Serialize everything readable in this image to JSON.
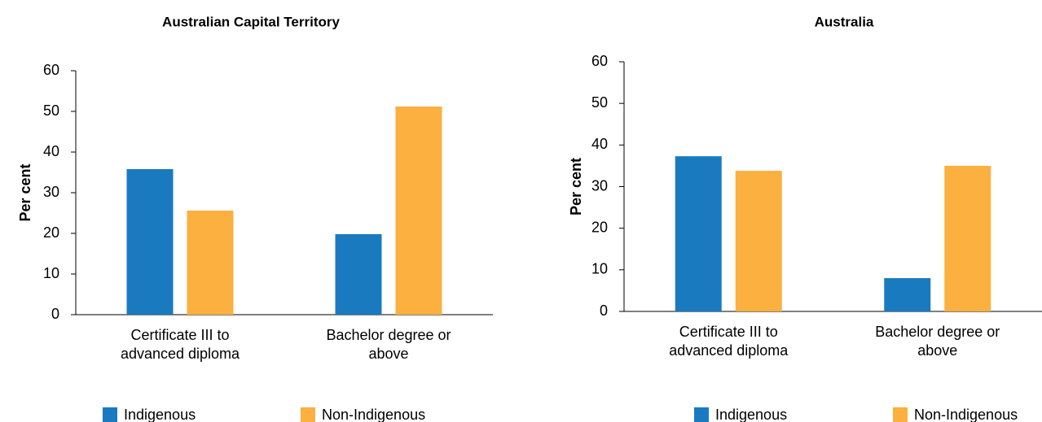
{
  "chart_data": [
    {
      "type": "bar",
      "title": "Australian Capital Territory",
      "y_label": "Per cent",
      "categories": [
        "Certificate III to advanced diploma",
        "Bachelor degree or above"
      ],
      "series": [
        {
          "name": "Indigenous",
          "color": "#1a7abf",
          "values": [
            35.8,
            19.8
          ]
        },
        {
          "name": "Non-Indigenous",
          "color": "#fbb040",
          "values": [
            25.6,
            51.2
          ]
        }
      ],
      "ylim": [
        0,
        60
      ],
      "yticks": [
        0,
        10,
        20,
        30,
        40,
        50,
        60
      ]
    },
    {
      "type": "bar",
      "title": "Australia",
      "y_label": "Per cent",
      "categories": [
        "Certificate III to advanced diploma",
        "Bachelor degree or above"
      ],
      "series": [
        {
          "name": "Indigenous",
          "color": "#1a7abf",
          "values": [
            37.3,
            8.0
          ]
        },
        {
          "name": "Non-Indigenous",
          "color": "#fbb040",
          "values": [
            33.8,
            35.0
          ]
        }
      ],
      "ylim": [
        0,
        60
      ],
      "yticks": [
        0,
        10,
        20,
        30,
        40,
        50,
        60
      ]
    }
  ]
}
